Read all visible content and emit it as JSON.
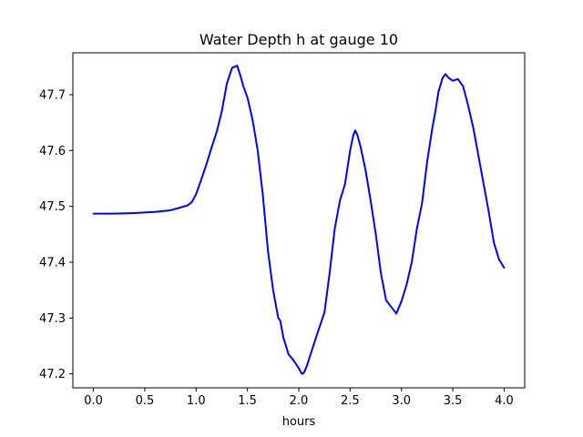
{
  "chart_data": {
    "type": "line",
    "title": "Water Depth h at gauge 10",
    "xlabel": "hours",
    "ylabel": "",
    "xlim": [
      -0.2,
      4.2
    ],
    "ylim": [
      47.175,
      47.775
    ],
    "x_ticks": [
      0.0,
      0.5,
      1.0,
      1.5,
      2.0,
      2.5,
      3.0,
      3.5,
      4.0
    ],
    "x_tick_labels": [
      "0.0",
      "0.5",
      "1.0",
      "1.5",
      "2.0",
      "2.5",
      "3.0",
      "3.5",
      "4.0"
    ],
    "y_ticks": [
      47.2,
      47.3,
      47.4,
      47.5,
      47.6,
      47.7
    ],
    "y_tick_labels": [
      "47.2",
      "47.3",
      "47.4",
      "47.5",
      "47.6",
      "47.7"
    ],
    "grid": false,
    "legend": "none",
    "series": [
      {
        "color": "#0000ff",
        "x": [
          0.0,
          0.2,
          0.4,
          0.6,
          0.75,
          0.85,
          0.92,
          0.96,
          1.0,
          1.05,
          1.1,
          1.15,
          1.2,
          1.25,
          1.3,
          1.35,
          1.4,
          1.43,
          1.46,
          1.5,
          1.55,
          1.6,
          1.65,
          1.7,
          1.75,
          1.8,
          1.82,
          1.85,
          1.9,
          1.95,
          2.0,
          2.03,
          2.05,
          2.08,
          2.12,
          2.18,
          2.25,
          2.3,
          2.35,
          2.4,
          2.45,
          2.5,
          2.53,
          2.55,
          2.57,
          2.6,
          2.65,
          2.7,
          2.75,
          2.8,
          2.85,
          2.9,
          2.95,
          3.0,
          3.05,
          3.1,
          3.15,
          3.2,
          3.25,
          3.3,
          3.33,
          3.36,
          3.4,
          3.43,
          3.46,
          3.5,
          3.55,
          3.6,
          3.65,
          3.7,
          3.75,
          3.8,
          3.85,
          3.9,
          3.95,
          4.0
        ],
        "y": [
          47.487,
          47.487,
          47.488,
          47.49,
          47.493,
          47.498,
          47.502,
          47.508,
          47.522,
          47.548,
          47.575,
          47.605,
          47.633,
          47.67,
          47.72,
          47.748,
          47.752,
          47.735,
          47.715,
          47.695,
          47.655,
          47.6,
          47.52,
          47.42,
          47.35,
          47.3,
          47.295,
          47.265,
          47.235,
          47.224,
          47.21,
          47.2,
          47.202,
          47.215,
          47.238,
          47.272,
          47.31,
          47.38,
          47.46,
          47.51,
          47.54,
          47.6,
          47.627,
          47.636,
          47.628,
          47.608,
          47.565,
          47.51,
          47.45,
          47.38,
          47.332,
          47.32,
          47.308,
          47.33,
          47.36,
          47.4,
          47.46,
          47.505,
          47.58,
          47.64,
          47.67,
          47.705,
          47.73,
          47.737,
          47.73,
          47.725,
          47.728,
          47.715,
          47.68,
          47.64,
          47.59,
          47.54,
          47.49,
          47.435,
          47.405,
          47.39
        ]
      }
    ]
  }
}
